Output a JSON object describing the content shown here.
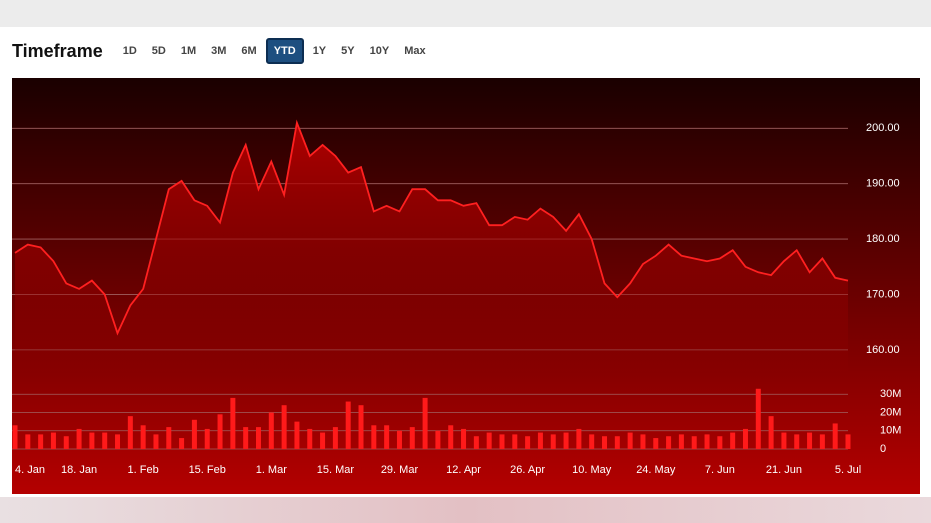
{
  "header": {
    "title": "Timeframe",
    "buttons": [
      "1D",
      "5D",
      "1M",
      "3M",
      "6M",
      "YTD",
      "1Y",
      "5Y",
      "10Y",
      "Max"
    ],
    "active": "YTD"
  },
  "chart_data": [
    {
      "type": "line",
      "color": "#ff2020",
      "categories": [
        "4. Jan",
        null,
        null,
        null,
        null,
        "18. Jan",
        null,
        null,
        null,
        null,
        "1. Feb",
        null,
        null,
        null,
        null,
        "15. Feb",
        null,
        null,
        null,
        null,
        "1. Mar",
        null,
        null,
        null,
        null,
        "15. Mar",
        null,
        null,
        null,
        null,
        "29. Mar",
        null,
        null,
        null,
        null,
        "12. Apr",
        null,
        null,
        null,
        null,
        "26. Apr",
        null,
        null,
        null,
        null,
        "10. May",
        null,
        null,
        null,
        null,
        "24. May",
        null,
        null,
        null,
        null,
        "7. Jun",
        null,
        null,
        null,
        null,
        "21. Jun",
        null,
        null,
        null,
        null,
        "5. Jul"
      ],
      "values": [
        177.5,
        179,
        178.5,
        176,
        172,
        171,
        172.5,
        170,
        163,
        168,
        171,
        180,
        189,
        190.5,
        187,
        186,
        183,
        192,
        197,
        189,
        194,
        188,
        201,
        195,
        197,
        195,
        192,
        193,
        185,
        186,
        185,
        189,
        189,
        187,
        187,
        186,
        186.5,
        182.5,
        182.5,
        184,
        183.5,
        185.5,
        184,
        181.5,
        184.5,
        180,
        172,
        169.5,
        172,
        175.5,
        177,
        179,
        177,
        176.5,
        176,
        176.5,
        178,
        175,
        174,
        173.5,
        176,
        178,
        174,
        176.5,
        173,
        172.5
      ],
      "ylim": [
        156,
        208
      ],
      "yticks": [
        {
          "value": 160,
          "label": "160.00"
        },
        {
          "value": 170,
          "label": "170.00"
        },
        {
          "value": 180,
          "label": "180.00"
        },
        {
          "value": 190,
          "label": "190.00"
        },
        {
          "value": 200,
          "label": "200.00"
        }
      ],
      "grid": true
    },
    {
      "type": "bar",
      "color": "#ff1a1a",
      "values": [
        13,
        8,
        8,
        9,
        7,
        11,
        9,
        9,
        8,
        18,
        13,
        8,
        12,
        6,
        16,
        11,
        19,
        28,
        12,
        12,
        20,
        24,
        15,
        11,
        9,
        12,
        26,
        24,
        13,
        13,
        10,
        12,
        28,
        10,
        13,
        11,
        7,
        9,
        8,
        8,
        7,
        9,
        8,
        9,
        11,
        8,
        7,
        7,
        9,
        8,
        6,
        7,
        8,
        7,
        8,
        7,
        9,
        11,
        33,
        18,
        9,
        8,
        9,
        8,
        14,
        8
      ],
      "ylim": [
        0,
        40
      ],
      "yticks": [
        0,
        {
          "value": 10,
          "label": "10M"
        },
        {
          "value": 20,
          "label": "20M"
        },
        {
          "value": 30,
          "label": "30M"
        }
      ],
      "grid": true
    }
  ]
}
